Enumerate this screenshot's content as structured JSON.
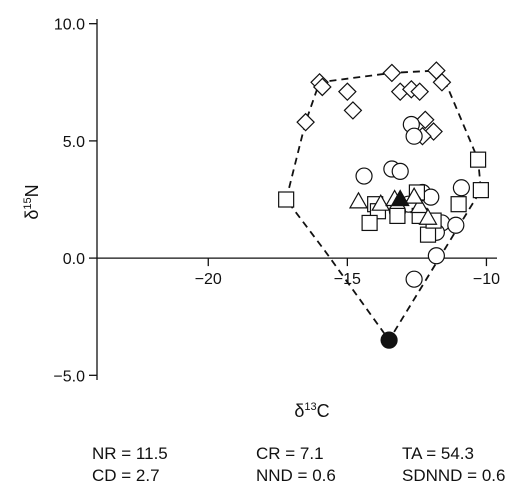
{
  "chart_data": {
    "type": "scatter",
    "xlabel_symbol": "δ",
    "xlabel_sup": "13",
    "xlabel_elem": "C",
    "ylabel_symbol": "δ",
    "ylabel_sup": "15",
    "ylabel_elem": "N",
    "xlim": [
      -24,
      -9.8
    ],
    "ylim": [
      -5.2,
      10.2
    ],
    "x_ticks": [
      -20,
      -15,
      -10
    ],
    "x_tick_labels": [
      "−20",
      "−15",
      "−10"
    ],
    "y_ticks": [
      -5,
      0,
      5,
      10
    ],
    "y_tick_labels": [
      "−5.0",
      "0.0",
      "5.0",
      "10.0"
    ],
    "grid": false,
    "legend": "none",
    "series": [
      {
        "marker": "diamond",
        "points": [
          [
            -16.5,
            5.8
          ],
          [
            -16.0,
            7.5
          ],
          [
            -15.9,
            7.3
          ],
          [
            -15.0,
            7.1
          ],
          [
            -14.8,
            6.3
          ],
          [
            -13.4,
            7.9
          ],
          [
            -13.1,
            7.1
          ],
          [
            -12.7,
            7.2
          ],
          [
            -12.4,
            7.1
          ],
          [
            -12.2,
            5.9
          ],
          [
            -11.9,
            5.4
          ],
          [
            -11.8,
            8.0
          ],
          [
            -11.6,
            7.5
          ],
          [
            -12.3,
            5.2
          ]
        ]
      },
      {
        "marker": "circle",
        "points": [
          [
            -14.4,
            3.5
          ],
          [
            -13.4,
            3.8
          ],
          [
            -13.1,
            3.7
          ],
          [
            -12.7,
            5.7
          ],
          [
            -12.6,
            5.2
          ],
          [
            -12.8,
            2.3
          ],
          [
            -12.3,
            2.8
          ],
          [
            -12.0,
            2.6
          ],
          [
            -11.6,
            1.5
          ],
          [
            -11.1,
            1.4
          ],
          [
            -10.9,
            3.0
          ],
          [
            -11.8,
            1.1
          ],
          [
            -11.8,
            0.1
          ],
          [
            -12.6,
            -0.9
          ],
          [
            -13.2,
            2.0
          ]
        ]
      },
      {
        "marker": "square",
        "points": [
          [
            -17.2,
            2.5
          ],
          [
            -14.0,
            2.3
          ],
          [
            -13.9,
            2.0
          ],
          [
            -13.2,
            1.8
          ],
          [
            -12.5,
            2.8
          ],
          [
            -12.4,
            1.8
          ],
          [
            -12.1,
            1.0
          ],
          [
            -11.9,
            1.6
          ],
          [
            -11.0,
            2.3
          ],
          [
            -10.3,
            4.2
          ],
          [
            -10.2,
            2.9
          ],
          [
            -14.2,
            1.5
          ]
        ]
      },
      {
        "marker": "triangle",
        "points": [
          [
            -14.6,
            2.4
          ],
          [
            -13.8,
            2.3
          ],
          [
            -13.3,
            2.5
          ],
          [
            -12.4,
            2.2
          ],
          [
            -12.1,
            1.7
          ],
          [
            -12.6,
            2.6
          ]
        ]
      },
      {
        "marker": "filled-triangle",
        "points": [
          [
            -13.1,
            2.5
          ]
        ]
      },
      {
        "marker": "filled-circle",
        "points": [
          [
            -13.5,
            -3.5
          ]
        ]
      }
    ],
    "hull": [
      [
        -17.2,
        2.5
      ],
      [
        -16.5,
        5.8
      ],
      [
        -16.0,
        7.5
      ],
      [
        -13.4,
        7.9
      ],
      [
        -11.8,
        8.0
      ],
      [
        -11.4,
        7.3
      ],
      [
        -10.3,
        4.2
      ],
      [
        -10.2,
        2.9
      ],
      [
        -13.5,
        -3.5
      ],
      [
        -15.8,
        0.3
      ]
    ],
    "stats": [
      [
        "NR = 11.5",
        "CR = 7.1",
        "TA = 54.3"
      ],
      [
        "CD = 2.7",
        "NND = 0.6",
        "SDNND = 0.6"
      ]
    ]
  }
}
